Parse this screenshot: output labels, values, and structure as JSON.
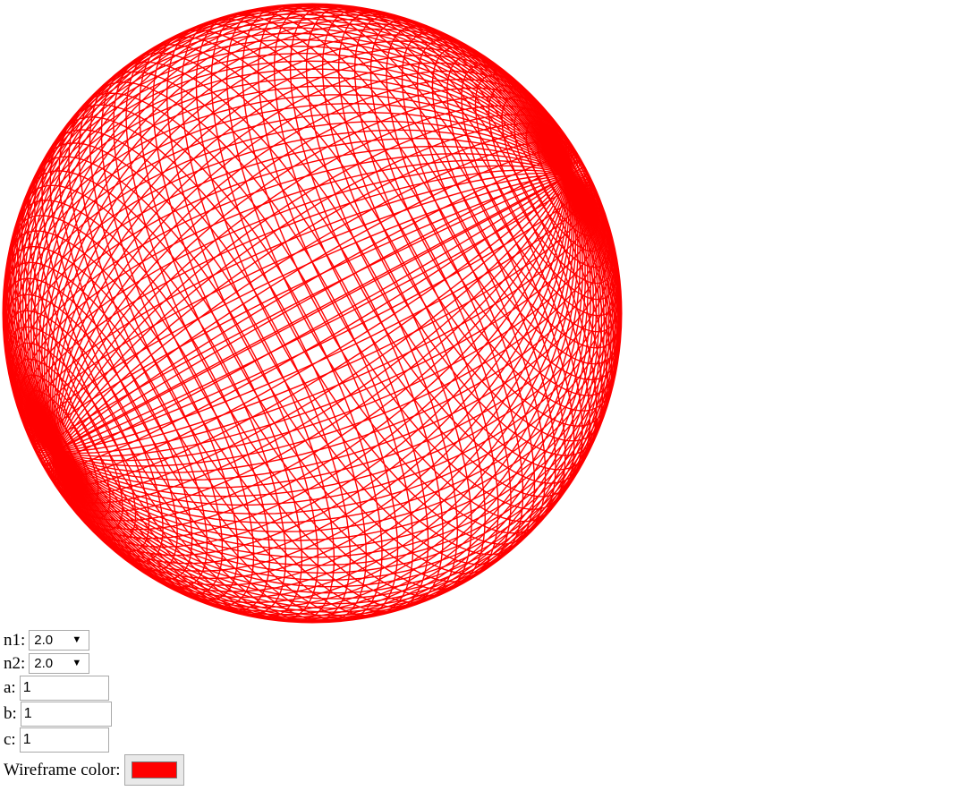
{
  "controls": {
    "n1": {
      "label": "n1:",
      "value": "2.0"
    },
    "n2": {
      "label": "n2:",
      "value": "2.0"
    },
    "a": {
      "label": "a:",
      "value": "1"
    },
    "b": {
      "label": "b:",
      "value": "1"
    },
    "c": {
      "label": "c:",
      "value": "1"
    },
    "wireframe_color": {
      "label": "Wireframe color:",
      "value": "#ff0000"
    }
  },
  "icons": {
    "dropdown": "caret-down-icon"
  },
  "colors": {
    "wireframe": "#ff0000",
    "background": "#ffffff"
  }
}
